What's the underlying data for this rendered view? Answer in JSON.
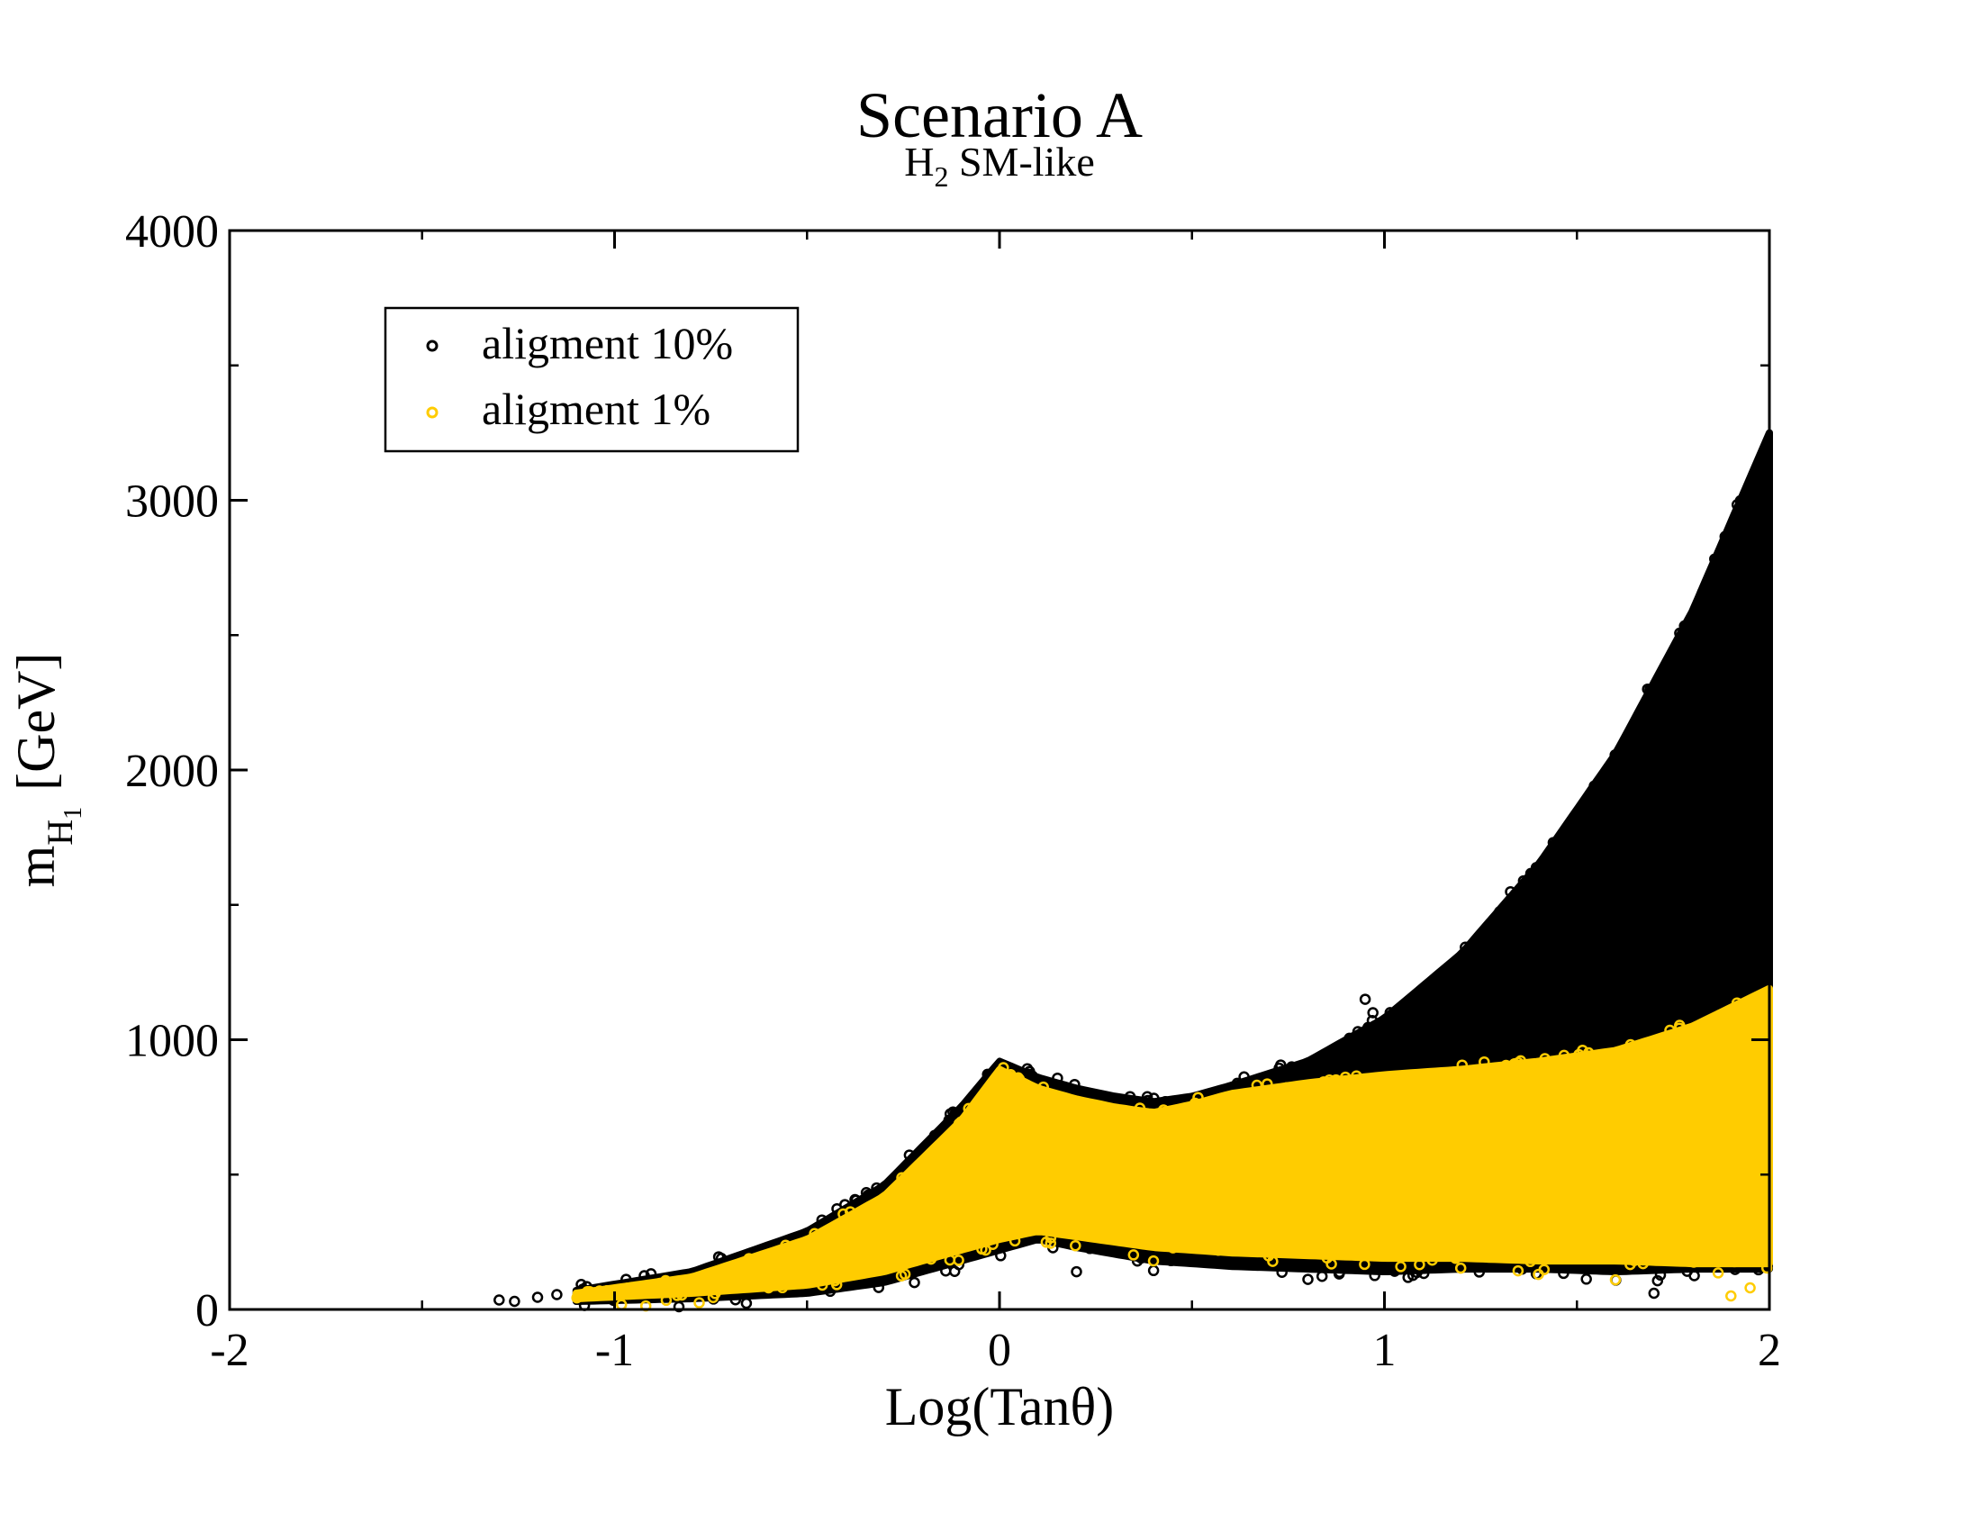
{
  "chart_data": {
    "type": "scatter",
    "title": "Scenario A",
    "subtitle_main": "H",
    "subtitle_sub": "2",
    "subtitle_rest": " SM-like",
    "xlabel": "Log(Tanθ)",
    "ylabel_main": "m",
    "ylabel_sub": "H",
    "ylabel_subsub": "1",
    "ylabel_rest": "[GeV]",
    "xlim": [
      -2,
      2
    ],
    "ylim": [
      0,
      4000
    ],
    "x_ticks": [
      -2,
      -1,
      0,
      1,
      2
    ],
    "x_tick_labels": [
      "-2",
      "-1",
      "0",
      "1",
      "2"
    ],
    "y_ticks": [
      0,
      1000,
      2000,
      3000,
      4000
    ],
    "y_tick_labels": [
      "0",
      "1000",
      "2000",
      "3000",
      "4000"
    ],
    "grid": false,
    "legend_position": "top-left",
    "series": [
      {
        "name": "aligment 10%",
        "color": "#000000",
        "marker": "open-circle",
        "upper": [
          [
            -1.1,
            70
          ],
          [
            -0.8,
            140
          ],
          [
            -0.5,
            290
          ],
          [
            -0.3,
            460
          ],
          [
            -0.1,
            750
          ],
          [
            0.0,
            920
          ],
          [
            0.1,
            860
          ],
          [
            0.2,
            820
          ],
          [
            0.3,
            790
          ],
          [
            0.4,
            770
          ],
          [
            0.5,
            790
          ],
          [
            0.6,
            830
          ],
          [
            0.8,
            920
          ],
          [
            1.0,
            1080
          ],
          [
            1.2,
            1320
          ],
          [
            1.4,
            1650
          ],
          [
            1.6,
            2060
          ],
          [
            1.8,
            2590
          ],
          [
            2.0,
            3250
          ]
        ],
        "lower": [
          [
            -1.1,
            30
          ],
          [
            -0.8,
            40
          ],
          [
            -0.5,
            60
          ],
          [
            -0.3,
            100
          ],
          [
            -0.1,
            180
          ],
          [
            0.0,
            220
          ],
          [
            0.1,
            260
          ],
          [
            0.2,
            230
          ],
          [
            0.4,
            180
          ],
          [
            0.6,
            160
          ],
          [
            0.8,
            150
          ],
          [
            1.0,
            140
          ],
          [
            1.2,
            150
          ],
          [
            1.4,
            150
          ],
          [
            1.6,
            140
          ],
          [
            1.8,
            150
          ],
          [
            2.0,
            150
          ]
        ],
        "outliers": [
          [
            -1.3,
            35
          ],
          [
            -1.26,
            30
          ],
          [
            -1.2,
            45
          ],
          [
            -1.15,
            55
          ],
          [
            1.7,
            60
          ],
          [
            0.2,
            140
          ],
          [
            0.95,
            1150
          ],
          [
            0.97,
            1100
          ]
        ]
      },
      {
        "name": "aligment 1%",
        "color": "#ffcc00",
        "marker": "open-circle",
        "upper": [
          [
            -1.1,
            60
          ],
          [
            -0.8,
            120
          ],
          [
            -0.5,
            260
          ],
          [
            -0.3,
            420
          ],
          [
            -0.1,
            700
          ],
          [
            0.0,
            890
          ],
          [
            0.1,
            820
          ],
          [
            0.2,
            780
          ],
          [
            0.3,
            750
          ],
          [
            0.4,
            730
          ],
          [
            0.5,
            760
          ],
          [
            0.6,
            800
          ],
          [
            0.8,
            840
          ],
          [
            1.0,
            870
          ],
          [
            1.2,
            890
          ],
          [
            1.4,
            920
          ],
          [
            1.6,
            960
          ],
          [
            1.8,
            1050
          ],
          [
            2.0,
            1190
          ]
        ],
        "lower": [
          [
            -1.1,
            40
          ],
          [
            -0.8,
            60
          ],
          [
            -0.5,
            90
          ],
          [
            -0.3,
            140
          ],
          [
            -0.1,
            220
          ],
          [
            0.0,
            260
          ],
          [
            0.1,
            290
          ],
          [
            0.2,
            270
          ],
          [
            0.4,
            230
          ],
          [
            0.6,
            210
          ],
          [
            0.8,
            200
          ],
          [
            1.0,
            190
          ],
          [
            1.2,
            190
          ],
          [
            1.4,
            180
          ],
          [
            1.6,
            180
          ],
          [
            1.8,
            170
          ],
          [
            2.0,
            170
          ]
        ],
        "outliers": [
          [
            1.9,
            50
          ],
          [
            1.95,
            80
          ],
          [
            1.4,
            130
          ],
          [
            1.6,
            110
          ],
          [
            0.4,
            180
          ],
          [
            -0.6,
            80
          ]
        ]
      }
    ]
  }
}
